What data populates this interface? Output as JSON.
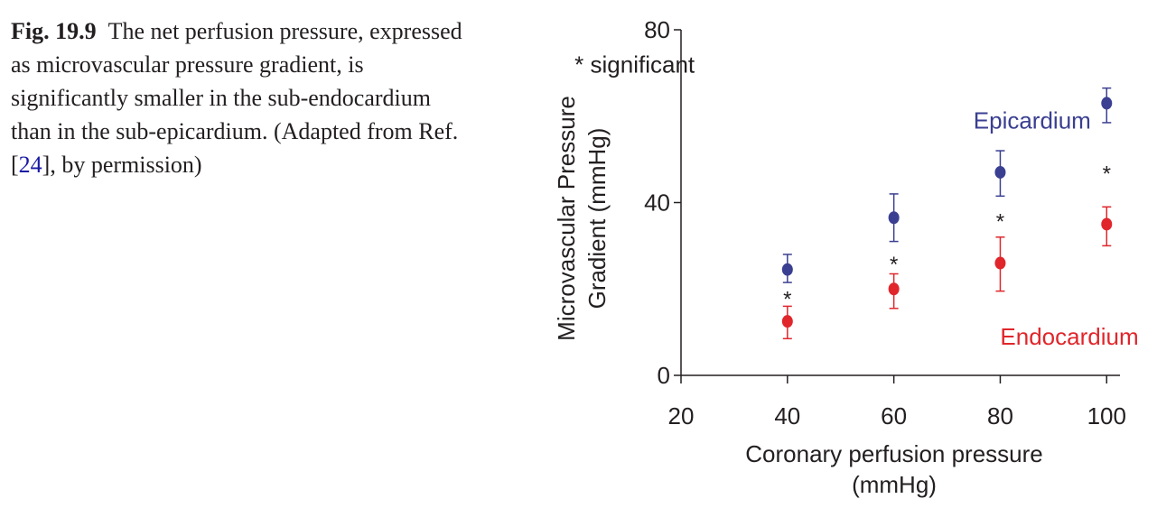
{
  "caption": {
    "label": "Fig. 19.9",
    "text_before_ref": "The net perfusion pressure, expressed as microvascular pressure gradient, is significantly smaller in the sub-endocardium than in the sub-epicardium. (Adapted from Ref. [",
    "ref": "24",
    "text_after_ref": "], by permission)"
  },
  "chart_data": {
    "type": "scatter",
    "xlabel": [
      "Coronary perfusion pressure",
      "(mmHg)"
    ],
    "ylabel": [
      "Microvascular Pressure",
      "Gradient (mmHg)"
    ],
    "xlim": [
      20,
      102.5
    ],
    "ylim": [
      0,
      80
    ],
    "xticks": [
      20,
      40,
      60,
      80,
      100
    ],
    "yticks": [
      0,
      40,
      80
    ],
    "grid": false,
    "x": [
      40,
      60,
      80,
      100
    ],
    "series": [
      {
        "name": "Epicardium",
        "color": "#3a3f91",
        "values": [
          24.5,
          36.5,
          47,
          63
        ],
        "err_low": [
          21.5,
          31,
          41.5,
          58.5
        ],
        "err_high": [
          28,
          42,
          52,
          66.5
        ],
        "label_at": [
          86,
          59
        ]
      },
      {
        "name": "Endocardium",
        "color": "#e0262b",
        "values": [
          12.5,
          20,
          26,
          35
        ],
        "err_low": [
          8.5,
          15.5,
          19.5,
          30
        ],
        "err_high": [
          16,
          23.5,
          32,
          39
        ],
        "label_at": [
          93,
          9
        ]
      }
    ],
    "significance_markers": {
      "symbol": "*",
      "positions": [
        [
          40,
          18.5
        ],
        [
          60,
          26.5
        ],
        [
          80,
          36.5
        ],
        [
          100,
          47.5
        ]
      ]
    },
    "annotations": [
      {
        "text": "* significant",
        "at": [
          40.5,
          72
        ]
      }
    ]
  }
}
